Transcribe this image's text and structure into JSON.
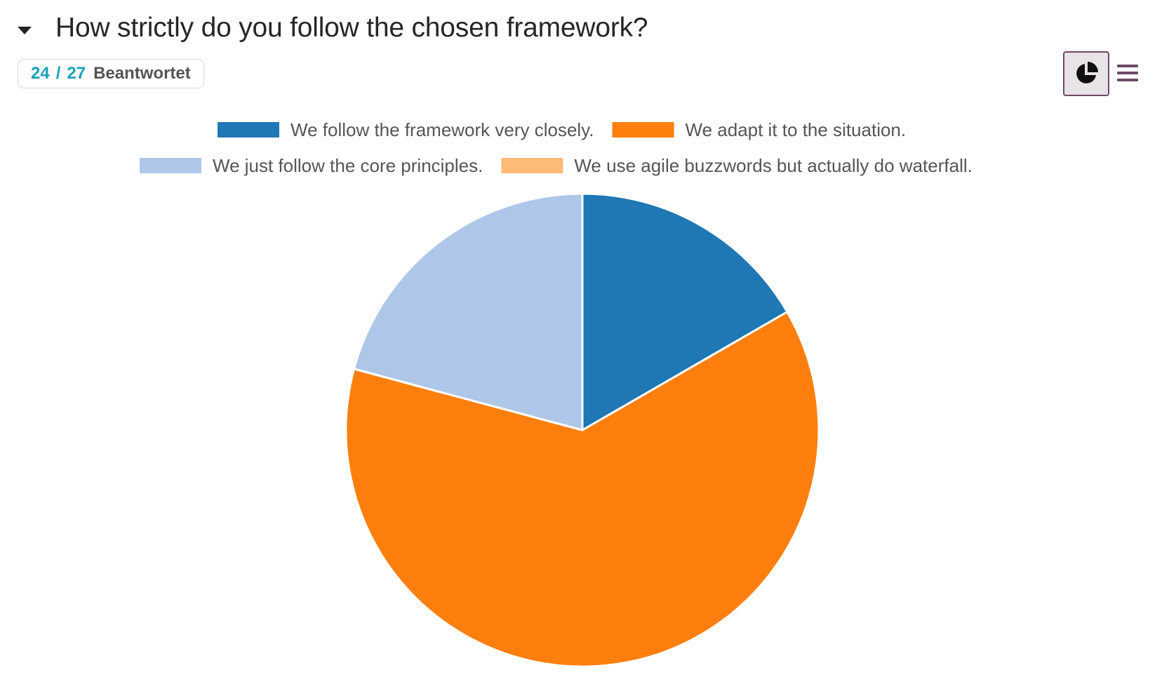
{
  "header": {
    "title": "How strictly do you follow the chosen framework?"
  },
  "badge": {
    "answered": "24",
    "separator": "/",
    "total": "27",
    "label": "Beantwortet"
  },
  "toolbar": {
    "chart_toggle_icon": "pie-chart-icon",
    "menu_icon": "hamburger-menu-icon"
  },
  "chart_data": {
    "type": "pie",
    "title": "",
    "legend_position": "top",
    "categories": [
      "We follow the framework very closely.",
      "We adapt it to the situation.",
      "We just follow the core principles.",
      "We use agile buzzwords but actually do waterfall."
    ],
    "values": [
      4,
      15,
      5,
      0
    ],
    "colors": [
      "#1f77b4",
      "#ff7f0e",
      "#aec7e8",
      "#ffbb78"
    ]
  }
}
